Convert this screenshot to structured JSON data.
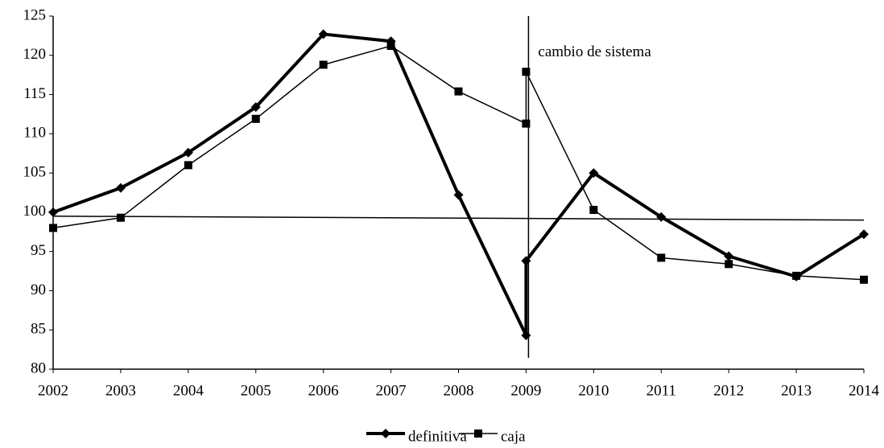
{
  "chart_data": {
    "type": "line",
    "x": [
      2002,
      2003,
      2004,
      2005,
      2006,
      2007,
      2008,
      2009,
      2009,
      2010,
      2011,
      2012,
      2013,
      2014
    ],
    "series": [
      {
        "name": "definitiva",
        "color": "#000000",
        "width": 4,
        "marker": "diamond",
        "values": [
          100,
          103.1,
          107.6,
          113.4,
          122.7,
          121.8,
          102.2,
          84.3,
          93.8,
          105.0,
          99.4,
          94.4,
          91.8,
          97.2
        ]
      },
      {
        "name": "caja",
        "color": "#000000",
        "width": 1.5,
        "marker": "square",
        "values": [
          98.0,
          99.3,
          106.0,
          111.9,
          118.8,
          121.2,
          115.4,
          111.3,
          117.9,
          100.3,
          94.2,
          93.4,
          91.9,
          91.4
        ]
      }
    ],
    "trend_line": {
      "x": [
        2002,
        2014
      ],
      "values": [
        99.5,
        99.0
      ]
    },
    "annotation": {
      "text": "cambio de sistema",
      "x": 2009
    },
    "xlim": [
      2002,
      2014
    ],
    "xticks": [
      2002,
      2003,
      2004,
      2005,
      2006,
      2007,
      2008,
      2009,
      2010,
      2011,
      2012,
      2013,
      2014
    ],
    "ylim": [
      80,
      125
    ],
    "yticks": [
      80,
      85,
      90,
      95,
      100,
      105,
      110,
      115,
      120,
      125
    ],
    "legend": "bottom"
  }
}
